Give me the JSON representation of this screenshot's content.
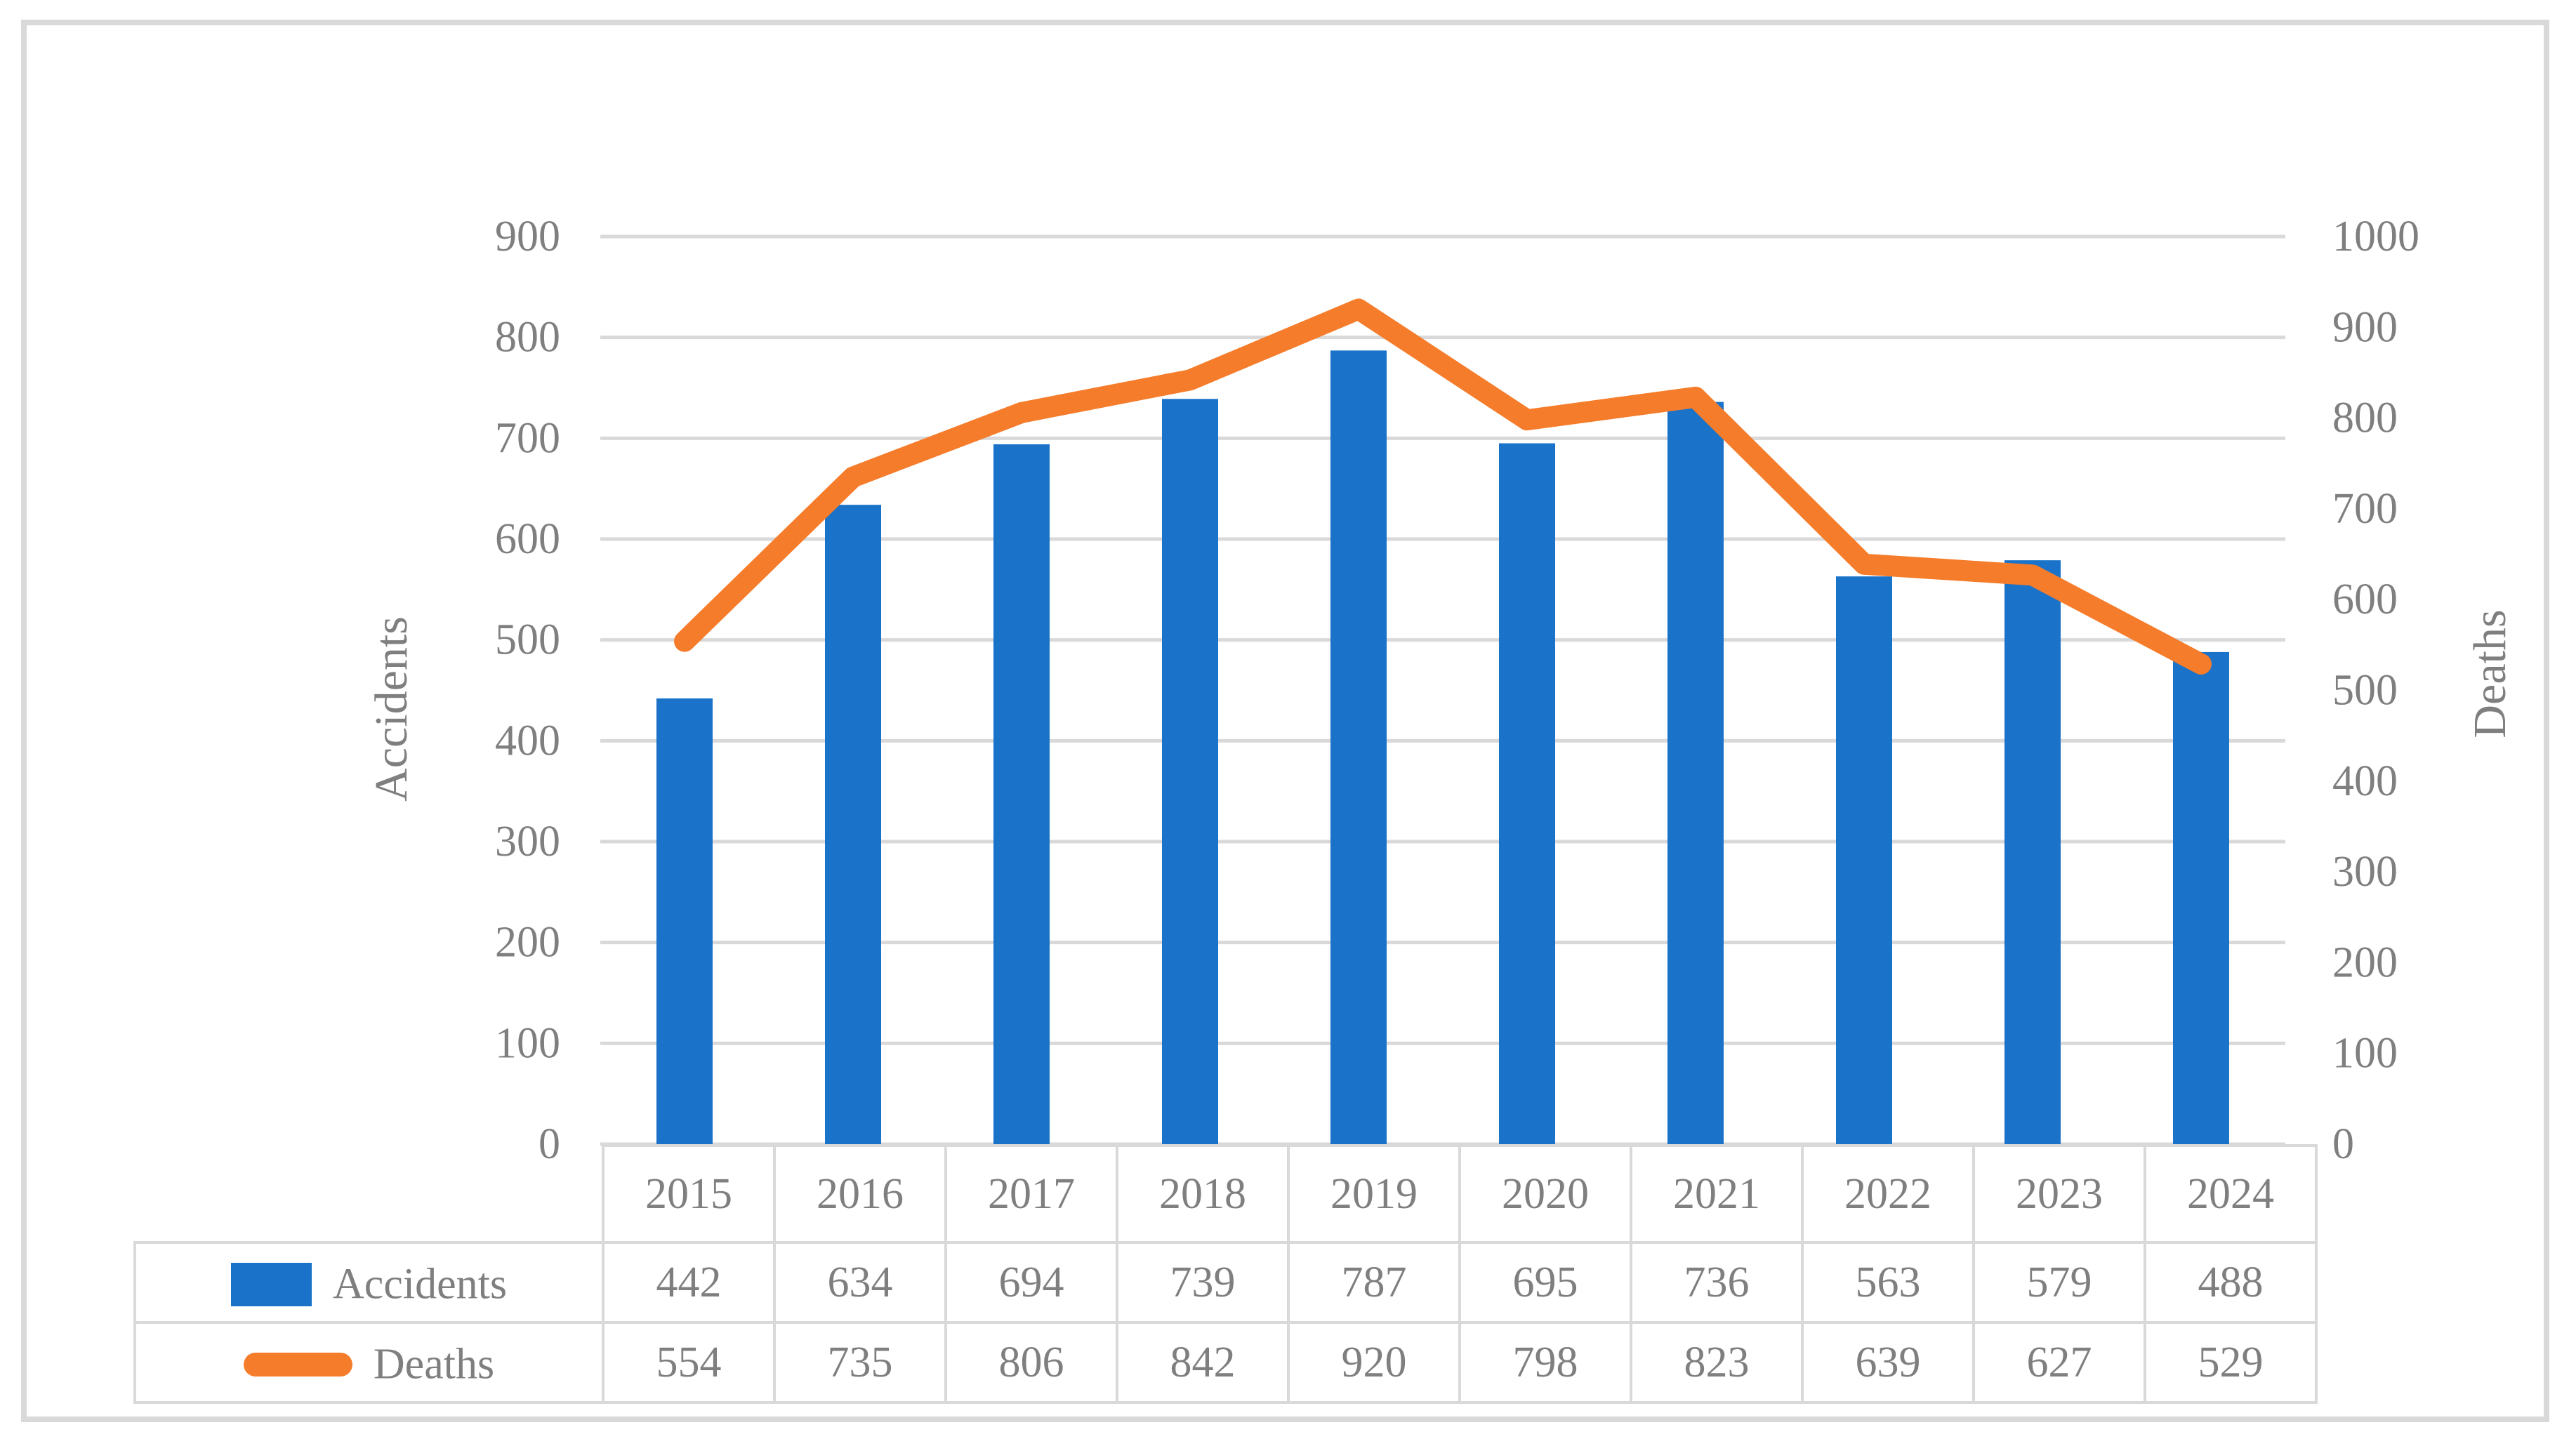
{
  "figure": {
    "background_color": "#ffffff",
    "frame_border_color": "#d9d9d9"
  },
  "chart_data": {
    "type": "bar+line combo",
    "categories": [
      "2015",
      "2016",
      "2017",
      "2018",
      "2019",
      "2020",
      "2021",
      "2022",
      "2023",
      "2024"
    ],
    "series": [
      {
        "name": "Accidents",
        "type": "bar",
        "axis": "left",
        "color": "#1a73c9",
        "values": [
          442,
          634,
          694,
          739,
          787,
          695,
          736,
          563,
          579,
          488
        ]
      },
      {
        "name": "Deaths",
        "type": "line",
        "axis": "right",
        "color": "#f57c2a",
        "values": [
          554,
          735,
          806,
          842,
          920,
          798,
          823,
          639,
          627,
          529
        ]
      }
    ],
    "left_axis": {
      "title": "Accidents",
      "min": 0,
      "max": 900,
      "step": 100,
      "tick_labels": [
        "900",
        "800",
        "700",
        "600",
        "500",
        "400",
        "300",
        "200",
        "100",
        "0"
      ]
    },
    "right_axis": {
      "title": "Deaths",
      "min": 0,
      "max": 1000,
      "step": 100,
      "tick_labels": [
        "1000",
        "900",
        "800",
        "700",
        "600",
        "500",
        "400",
        "300",
        "200",
        "100",
        "0"
      ]
    },
    "grid": true,
    "gridline_color": "#d9d9d9",
    "text_color": "#7f7f7f",
    "legend_position": "table-left",
    "data_table_shown": true
  }
}
